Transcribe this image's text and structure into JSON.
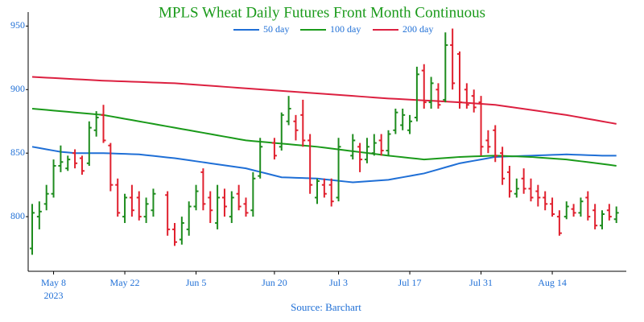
{
  "chart_data": {
    "type": "ohlc",
    "title": "MPLS Wheat Daily Futures Front Month Continuous",
    "title_color": "#1a9a1a",
    "source": "Source: Barchart",
    "x_year_label": "2023",
    "categories": [
      null,
      null,
      null,
      "May 8",
      null,
      null,
      null,
      null,
      null,
      null,
      null,
      null,
      null,
      "May 22",
      null,
      null,
      null,
      null,
      null,
      null,
      null,
      null,
      null,
      "Jun 5",
      null,
      null,
      null,
      null,
      null,
      null,
      null,
      null,
      null,
      null,
      "Jun 20",
      null,
      null,
      null,
      null,
      null,
      null,
      null,
      null,
      "Jul 3",
      null,
      null,
      null,
      null,
      null,
      null,
      null,
      null,
      null,
      "Jul 17",
      null,
      null,
      null,
      null,
      null,
      null,
      null,
      null,
      null,
      "Jul 31",
      null,
      null,
      null,
      null,
      null,
      null,
      null,
      null,
      null,
      "Aug 14",
      null,
      null,
      null,
      null,
      null,
      null,
      null,
      null,
      null
    ],
    "ohlc": {
      "up_color": "#1e8c1e",
      "down_color": "#e0202e",
      "open": [
        775,
        800,
        810,
        818,
        840,
        838,
        850,
        846,
        842,
        868,
        880,
        856,
        825,
        800,
        815,
        815,
        800,
        805,
        null,
        817,
        790,
        782,
        790,
        808,
        835,
        815,
        795,
        815,
        800,
        818,
        810,
        805,
        832,
        null,
        858,
        855,
        875,
        875,
        880,
        860,
        815,
        825,
        825,
        815,
        null,
        848,
        855,
        845,
        850,
        860,
        852,
        868,
        872,
        868,
        878,
        915,
        890,
        900,
        892,
        935,
        928,
        900,
        895,
        890,
        860,
        868,
        850,
        835,
        818,
        830,
        822,
        820,
        815,
        810,
        800,
        800,
        806,
        803,
        815,
        805,
        793,
        805,
        798
      ],
      "high": [
        810,
        812,
        825,
        845,
        856,
        848,
        853,
        848,
        875,
        883,
        888,
        858,
        830,
        818,
        825,
        820,
        815,
        822,
        null,
        820,
        795,
        800,
        812,
        825,
        838,
        820,
        825,
        822,
        820,
        825,
        815,
        835,
        862,
        null,
        862,
        882,
        895,
        880,
        892,
        865,
        830,
        830,
        830,
        862,
        null,
        865,
        858,
        862,
        865,
        865,
        868,
        885,
        885,
        880,
        918,
        920,
        910,
        905,
        945,
        948,
        930,
        905,
        900,
        895,
        868,
        872,
        855,
        840,
        830,
        838,
        830,
        825,
        820,
        815,
        805,
        812,
        810,
        815,
        820,
        810,
        805,
        810,
        808
      ],
      "low": [
        770,
        790,
        805,
        815,
        835,
        836,
        838,
        833,
        840,
        863,
        858,
        820,
        800,
        795,
        800,
        797,
        795,
        800,
        null,
        785,
        777,
        778,
        785,
        805,
        805,
        795,
        790,
        800,
        795,
        805,
        800,
        800,
        830,
        null,
        845,
        852,
        872,
        860,
        855,
        818,
        810,
        815,
        808,
        812,
        null,
        845,
        835,
        842,
        848,
        848,
        848,
        865,
        868,
        865,
        875,
        885,
        885,
        885,
        890,
        900,
        885,
        885,
        882,
        848,
        850,
        843,
        825,
        815,
        815,
        818,
        812,
        808,
        805,
        800,
        785,
        798,
        800,
        800,
        797,
        790,
        790,
        797,
        795
      ],
      "close": [
        803,
        804,
        818,
        840,
        843,
        845,
        842,
        836,
        870,
        878,
        860,
        825,
        803,
        815,
        805,
        800,
        810,
        818,
        null,
        790,
        780,
        795,
        808,
        820,
        810,
        805,
        815,
        808,
        815,
        808,
        803,
        830,
        855,
        null,
        848,
        880,
        885,
        868,
        860,
        825,
        828,
        818,
        812,
        855,
        null,
        860,
        845,
        855,
        858,
        852,
        865,
        882,
        880,
        875,
        912,
        890,
        905,
        888,
        935,
        905,
        890,
        888,
        886,
        855,
        855,
        848,
        830,
        820,
        822,
        822,
        815,
        815,
        810,
        802,
        787,
        808,
        803,
        812,
        800,
        793,
        802,
        800,
        803
      ]
    },
    "series": [
      {
        "name": "50 day",
        "color": "#1f6fd6",
        "values": [
          855,
          854,
          853,
          852,
          851,
          850.5,
          850,
          850,
          850,
          850,
          850,
          849.8,
          849.6,
          849.4,
          849.2,
          849,
          848.4,
          847.8,
          847.2,
          846.6,
          846,
          845.2,
          844.4,
          843.6,
          842.8,
          842,
          841.2,
          840.4,
          839.6,
          838.8,
          838,
          836.6,
          835.2,
          833.8,
          832.4,
          831,
          830.8,
          830.6,
          830.4,
          830.2,
          830,
          829.4,
          828.8,
          828.2,
          827.6,
          827,
          827.4,
          827.8,
          828.2,
          828.6,
          829,
          830,
          831,
          832,
          833,
          834,
          835.6,
          837.2,
          838.8,
          840.4,
          842,
          843,
          844,
          845,
          846,
          847,
          847.2,
          847.4,
          847.6,
          847.8,
          848,
          848.2,
          848.4,
          848.6,
          848.8,
          849,
          848.8,
          848.6,
          848.4,
          848.2,
          848,
          848,
          848
        ]
      },
      {
        "name": "100 day",
        "color": "#1a9a1a",
        "values": [
          885,
          884.5,
          884,
          883.5,
          883,
          882.5,
          882,
          881.5,
          881,
          880.5,
          880,
          879,
          878,
          877,
          876,
          875,
          874,
          873,
          872,
          871,
          870,
          869,
          868,
          867,
          866,
          865,
          864,
          863,
          862,
          861,
          860,
          859.5,
          859,
          858.5,
          858,
          857.5,
          857,
          856.5,
          856,
          855.5,
          855,
          854.3,
          853.6,
          852.9,
          852.2,
          851.5,
          850.8,
          850.1,
          849.4,
          848.7,
          848,
          847.4,
          846.8,
          846.2,
          845.6,
          845,
          845.4,
          845.8,
          846.2,
          846.6,
          847,
          847.2,
          847.4,
          847.6,
          847.8,
          848,
          847.8,
          847.6,
          847.4,
          847.2,
          847,
          846.6,
          846.2,
          845.8,
          845.4,
          845,
          844.3,
          843.6,
          842.9,
          842.2,
          841.5,
          840.8,
          840
        ]
      },
      {
        "name": "200 day",
        "color": "#dc2040",
        "values": [
          910,
          909.7,
          909.4,
          909.1,
          908.8,
          908.5,
          908.2,
          907.9,
          907.6,
          907.3,
          907,
          906.8,
          906.6,
          906.4,
          906.2,
          906,
          905.8,
          905.6,
          905.4,
          905.2,
          905,
          904.6,
          904.2,
          903.8,
          903.4,
          903,
          902.6,
          902.2,
          901.8,
          901.4,
          901,
          900.6,
          900.2,
          899.8,
          899.4,
          899,
          898.6,
          898.2,
          897.8,
          897.4,
          897,
          896.6,
          896.2,
          895.8,
          895.4,
          895,
          894.6,
          894.2,
          893.8,
          893.4,
          893,
          892.7,
          892.4,
          892.1,
          891.8,
          891.5,
          891.2,
          890.9,
          890.6,
          890.3,
          890,
          889.6,
          889.2,
          888.8,
          888.4,
          888,
          887.2,
          886.4,
          885.6,
          884.8,
          884,
          883.2,
          882.4,
          881.6,
          880.8,
          880,
          879,
          878,
          877,
          876,
          875,
          874,
          873
        ]
      }
    ],
    "ylim": [
      757,
      961
    ],
    "yticks": [
      800,
      850,
      900,
      950
    ],
    "tick_color": "#1f6fd6",
    "grid": false
  }
}
